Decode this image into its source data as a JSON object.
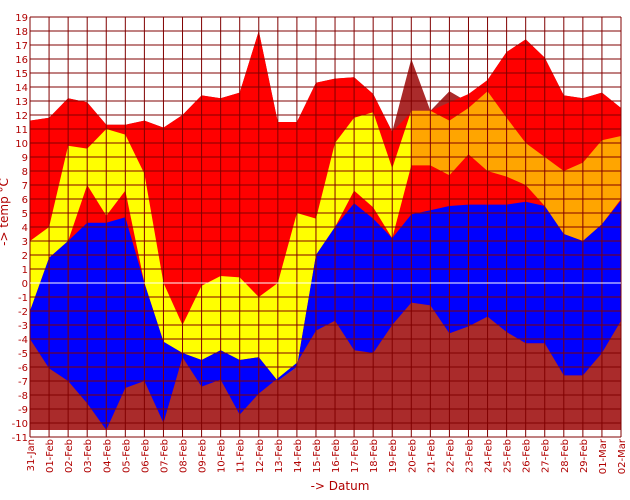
{
  "chart_data": {
    "type": "area",
    "title": "",
    "xlabel": "-> Datum",
    "ylabel": "-> temp °C",
    "ylim": [
      -11,
      19
    ],
    "grid": true,
    "categories": [
      "31-Jan",
      "01-Feb",
      "02-Feb",
      "03-Feb",
      "04-Feb",
      "05-Feb",
      "06-Feb",
      "07-Feb",
      "08-Feb",
      "09-Feb",
      "10-Feb",
      "11-Feb",
      "12-Feb",
      "13-Feb",
      "14-Feb",
      "15-Feb",
      "16-Feb",
      "17-Feb",
      "18-Feb",
      "19-Feb",
      "20-Feb",
      "21-Feb",
      "22-Feb",
      "23-Feb",
      "24-Feb",
      "25-Feb",
      "26-Feb",
      "27-Feb",
      "28-Feb",
      "29-Feb",
      "01-Mar",
      "02-Mar"
    ],
    "yticks": [
      19,
      18,
      17,
      16,
      15,
      14,
      13,
      12,
      11,
      10,
      9,
      8,
      7,
      6,
      5,
      4,
      3,
      2,
      1,
      0,
      -1,
      -2,
      -3,
      -4,
      -5,
      -6,
      -7,
      -8,
      -9,
      -10,
      -11
    ],
    "series": [
      {
        "role": "max-band-top",
        "color": "#ff0000",
        "values": [
          11.6,
          11.8,
          13.2,
          12.9,
          11.3,
          11.3,
          11.6,
          11.1,
          12.0,
          13.4,
          13.2,
          13.6,
          18.0,
          11.5,
          11.5,
          14.3,
          14.6,
          14.7,
          13.5,
          10.8,
          12.2,
          12.3,
          12.9,
          13.5,
          14.5,
          16.5,
          17.4,
          16.1,
          13.4,
          13.2,
          13.6,
          12.5
        ]
      },
      {
        "role": "actual-max",
        "color": "#aa2b2b",
        "values": [
          11.6,
          11.8,
          13.2,
          12.9,
          11.3,
          11.3,
          11.6,
          11.1,
          12.0,
          13.4,
          13.2,
          13.6,
          18.0,
          11.5,
          11.5,
          14.3,
          14.6,
          14.7,
          13.5,
          10.8,
          16.0,
          12.3,
          13.7,
          12.9,
          14.5,
          16.5,
          17.4,
          16.1,
          13.4,
          13.2,
          13.6,
          12.5
        ]
      },
      {
        "role": "highlight-top",
        "color": "#ffff00",
        "values": [
          3.0,
          4.0,
          9.8,
          9.6,
          11.0,
          10.6,
          7.8,
          0.0,
          -3.0,
          -0.2,
          0.5,
          0.4,
          -1.0,
          0.0,
          5.0,
          4.6,
          10.0,
          11.8,
          12.2,
          8.2,
          12.3,
          12.3,
          11.6,
          12.5,
          13.7,
          11.8,
          10.0,
          9.0,
          8.0,
          8.6,
          10.2,
          10.5
        ]
      },
      {
        "role": "highlight-bottom",
        "color": "#ffff00",
        "values": [
          -2.0,
          1.8,
          3.0,
          7.0,
          4.8,
          6.6,
          0.0,
          -4.2,
          -5.0,
          -5.5,
          -4.8,
          -5.5,
          -5.3,
          -7.0,
          -6.0,
          2.0,
          4.0,
          6.6,
          5.4,
          3.2,
          8.4,
          8.4,
          7.7,
          9.2,
          8.0,
          7.6,
          7.0,
          5.5,
          3.5,
          3.0,
          4.2,
          6.0
        ]
      },
      {
        "role": "mean-band-top",
        "color": "#0000ff",
        "values": [
          3.3,
          3.8,
          4.3,
          4.3,
          4.3,
          4.7,
          3.8,
          3.6,
          3.5,
          3.1,
          3.4,
          3.3,
          3.1,
          3.2,
          3.6,
          5.8,
          5.0,
          5.7,
          4.6,
          4.3,
          4.9,
          5.2,
          5.5,
          5.6,
          5.6,
          5.6,
          5.8,
          5.5,
          5.2,
          5.5,
          5.6,
          5.9
        ]
      },
      {
        "role": "min-band-bottom",
        "color": "#0000ff",
        "values": [
          -4.0,
          -6.1,
          -7.0,
          -8.6,
          -10.5,
          -7.5,
          -7.0,
          -10.0,
          -5.3,
          -7.4,
          -6.9,
          -9.4,
          -7.9,
          -6.8,
          -5.7,
          -3.4,
          -2.7,
          -4.8,
          -5.0,
          -3.0,
          -1.4,
          -1.6,
          -3.6,
          -3.1,
          -2.4,
          -3.5,
          -4.3,
          -4.3,
          -6.6,
          -6.6,
          -5.0,
          -2.7
        ]
      }
    ],
    "orange_range": [
      "20-Feb",
      "02-Mar"
    ],
    "colors": {
      "red": "#ff0000",
      "darkred": "#aa2b2b",
      "yellow": "#ffff00",
      "orange": "#ffa500",
      "blue": "#0000ff",
      "grid": "#800000",
      "tick": "#b00000",
      "zeroline": "#ffffff"
    }
  }
}
